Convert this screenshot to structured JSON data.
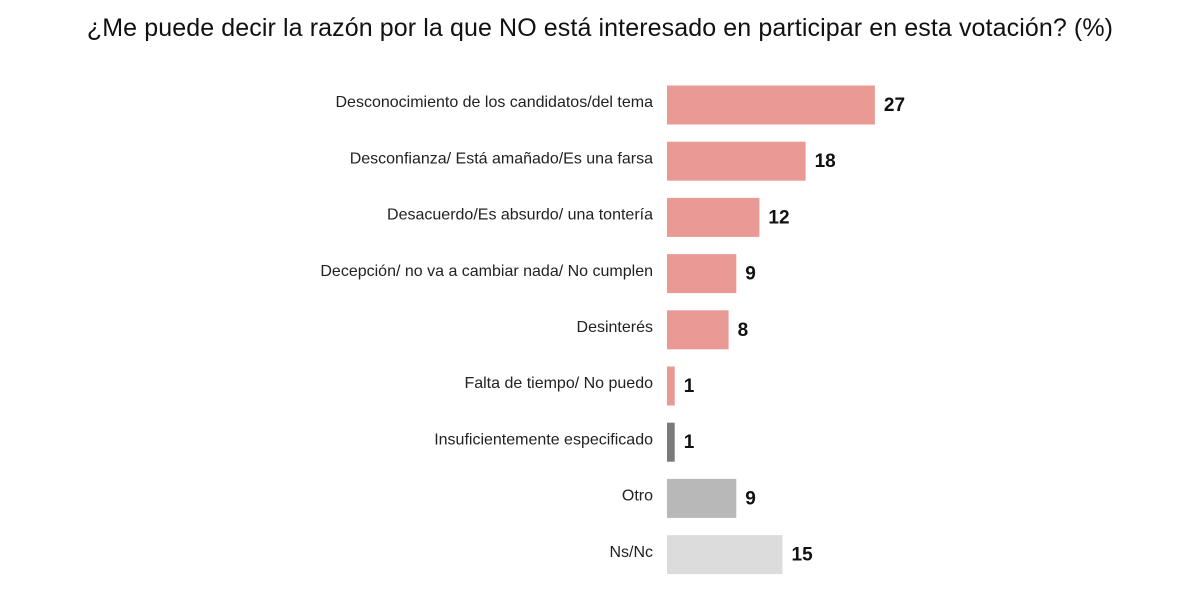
{
  "chart_data": {
    "type": "bar",
    "orientation": "horizontal",
    "title": "¿Me puede decir la razón por la que NO está interesado en participar en esta votación? (%)",
    "xlabel": "",
    "ylabel": "",
    "xlim": [
      0,
      40
    ],
    "grid": false,
    "legend": "none",
    "categories": [
      "Desconocimiento de los candidatos/del tema",
      "Desconfianza/ Está amañado/Es una farsa",
      "Desacuerdo/Es absurdo/ una tontería",
      "Decepción/ no va a cambiar nada/ No cumplen",
      "Desinterés",
      "Falta de tiempo/ No puedo",
      "Insuficientemente especificado",
      "Otro",
      "Ns/Nc"
    ],
    "values": [
      27,
      18,
      12,
      9,
      8,
      1,
      1,
      9,
      15
    ],
    "colors": [
      "#e99a94",
      "#e99a94",
      "#e99a94",
      "#e99a94",
      "#e99a94",
      "#e99a94",
      "#7a7a7a",
      "#b8b8b8",
      "#dcdcdc"
    ]
  }
}
